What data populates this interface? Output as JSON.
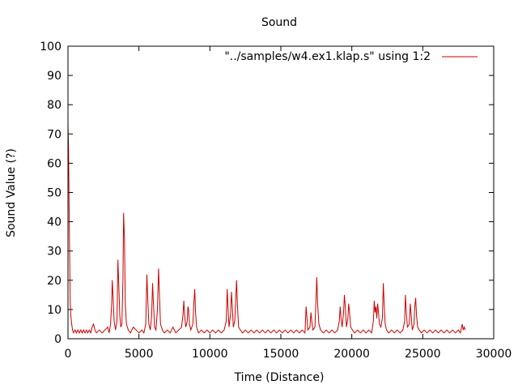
{
  "chart_data": {
    "type": "line",
    "title": "Sound",
    "xlabel": "Time (Distance)",
    "ylabel": "Sound Value (?)",
    "xlim": [
      0,
      30000
    ],
    "ylim": [
      0,
      100
    ],
    "x_ticks": [
      0,
      5000,
      10000,
      15000,
      20000,
      25000,
      30000
    ],
    "y_ticks": [
      0,
      10,
      20,
      30,
      40,
      50,
      60,
      70,
      80,
      90,
      100
    ],
    "x_tick_labels": [
      "0",
      "5000",
      "10000",
      "15000",
      "20000",
      "25000",
      "30000"
    ],
    "y_tick_labels": [
      "0",
      "10",
      "20",
      "30",
      "40",
      "50",
      "60",
      "70",
      "80",
      "90",
      "100"
    ],
    "grid": false,
    "legend_position": "top-right",
    "series": [
      {
        "name": "\"../samples/w4.ex1.klap.s\" using 1:2",
        "color": "#cc0000",
        "points": [
          [
            0,
            73
          ],
          [
            40,
            65
          ],
          [
            80,
            45
          ],
          [
            120,
            28
          ],
          [
            160,
            12
          ],
          [
            200,
            8
          ],
          [
            260,
            5
          ],
          [
            320,
            3
          ],
          [
            400,
            2
          ],
          [
            500,
            3
          ],
          [
            600,
            2
          ],
          [
            700,
            3
          ],
          [
            800,
            2
          ],
          [
            900,
            3
          ],
          [
            1000,
            2
          ],
          [
            1100,
            3
          ],
          [
            1200,
            2
          ],
          [
            1300,
            3
          ],
          [
            1400,
            2
          ],
          [
            1500,
            3
          ],
          [
            1600,
            2
          ],
          [
            1700,
            4
          ],
          [
            1800,
            5
          ],
          [
            1900,
            3
          ],
          [
            2000,
            2
          ],
          [
            2200,
            3
          ],
          [
            2400,
            2
          ],
          [
            2600,
            3
          ],
          [
            2800,
            4
          ],
          [
            2900,
            2
          ],
          [
            3000,
            5
          ],
          [
            3080,
            12
          ],
          [
            3120,
            20
          ],
          [
            3180,
            14
          ],
          [
            3250,
            6
          ],
          [
            3350,
            3
          ],
          [
            3450,
            6
          ],
          [
            3520,
            27
          ],
          [
            3580,
            18
          ],
          [
            3650,
            8
          ],
          [
            3720,
            4
          ],
          [
            3800,
            5
          ],
          [
            3870,
            20
          ],
          [
            3920,
            43
          ],
          [
            3980,
            34
          ],
          [
            4040,
            12
          ],
          [
            4120,
            5
          ],
          [
            4250,
            3
          ],
          [
            4400,
            2
          ],
          [
            4600,
            4
          ],
          [
            4800,
            3
          ],
          [
            5000,
            2
          ],
          [
            5200,
            3
          ],
          [
            5350,
            2
          ],
          [
            5480,
            5
          ],
          [
            5560,
            22
          ],
          [
            5620,
            14
          ],
          [
            5700,
            5
          ],
          [
            5800,
            3
          ],
          [
            5900,
            8
          ],
          [
            5960,
            19
          ],
          [
            6020,
            12
          ],
          [
            6100,
            4
          ],
          [
            6200,
            3
          ],
          [
            6300,
            10
          ],
          [
            6380,
            24
          ],
          [
            6440,
            16
          ],
          [
            6520,
            5
          ],
          [
            6650,
            3
          ],
          [
            6800,
            2
          ],
          [
            7000,
            3
          ],
          [
            7200,
            2
          ],
          [
            7400,
            4
          ],
          [
            7600,
            2
          ],
          [
            7800,
            3
          ],
          [
            8000,
            4
          ],
          [
            8100,
            8
          ],
          [
            8160,
            13
          ],
          [
            8220,
            8
          ],
          [
            8300,
            4
          ],
          [
            8400,
            6
          ],
          [
            8450,
            11
          ],
          [
            8500,
            10
          ],
          [
            8560,
            5
          ],
          [
            8650,
            3
          ],
          [
            8800,
            5
          ],
          [
            8880,
            13
          ],
          [
            8930,
            17
          ],
          [
            8990,
            9
          ],
          [
            9060,
            4
          ],
          [
            9200,
            2
          ],
          [
            9400,
            3
          ],
          [
            9600,
            2
          ],
          [
            9800,
            3
          ],
          [
            10000,
            2
          ],
          [
            10200,
            3
          ],
          [
            10400,
            2
          ],
          [
            10600,
            3
          ],
          [
            10800,
            2
          ],
          [
            11000,
            3
          ],
          [
            11150,
            6
          ],
          [
            11220,
            17
          ],
          [
            11280,
            10
          ],
          [
            11350,
            4
          ],
          [
            11450,
            8
          ],
          [
            11520,
            16
          ],
          [
            11580,
            11
          ],
          [
            11650,
            4
          ],
          [
            11750,
            6
          ],
          [
            11820,
            13
          ],
          [
            11880,
            20
          ],
          [
            11940,
            12
          ],
          [
            12020,
            4
          ],
          [
            12150,
            3
          ],
          [
            12300,
            2
          ],
          [
            12500,
            3
          ],
          [
            12700,
            2
          ],
          [
            12900,
            3
          ],
          [
            13100,
            2
          ],
          [
            13300,
            3
          ],
          [
            13500,
            2
          ],
          [
            13700,
            3
          ],
          [
            13900,
            2
          ],
          [
            14100,
            3
          ],
          [
            14300,
            2
          ],
          [
            14500,
            3
          ],
          [
            14700,
            2
          ],
          [
            14900,
            3
          ],
          [
            15100,
            2
          ],
          [
            15300,
            3
          ],
          [
            15500,
            2
          ],
          [
            15700,
            3
          ],
          [
            15900,
            2
          ],
          [
            16100,
            3
          ],
          [
            16300,
            2
          ],
          [
            16500,
            3
          ],
          [
            16700,
            2
          ],
          [
            16780,
            11
          ],
          [
            16840,
            7
          ],
          [
            16900,
            3
          ],
          [
            17050,
            4
          ],
          [
            17120,
            9
          ],
          [
            17180,
            6
          ],
          [
            17260,
            3
          ],
          [
            17400,
            4
          ],
          [
            17480,
            14
          ],
          [
            17530,
            21
          ],
          [
            17590,
            12
          ],
          [
            17680,
            5
          ],
          [
            17800,
            3
          ],
          [
            18000,
            2
          ],
          [
            18200,
            3
          ],
          [
            18400,
            2
          ],
          [
            18600,
            3
          ],
          [
            18800,
            2
          ],
          [
            19000,
            3
          ],
          [
            19120,
            6
          ],
          [
            19180,
            11
          ],
          [
            19240,
            7
          ],
          [
            19320,
            4
          ],
          [
            19420,
            9
          ],
          [
            19480,
            15
          ],
          [
            19540,
            11
          ],
          [
            19620,
            4
          ],
          [
            19720,
            7
          ],
          [
            19780,
            12
          ],
          [
            19840,
            9
          ],
          [
            19920,
            4
          ],
          [
            20050,
            3
          ],
          [
            20200,
            2
          ],
          [
            20400,
            3
          ],
          [
            20600,
            2
          ],
          [
            20800,
            3
          ],
          [
            21000,
            2
          ],
          [
            21200,
            3
          ],
          [
            21400,
            2
          ],
          [
            21520,
            6
          ],
          [
            21580,
            13
          ],
          [
            21640,
            9
          ],
          [
            21700,
            11
          ],
          [
            21760,
            7
          ],
          [
            21820,
            12
          ],
          [
            21880,
            9
          ],
          [
            21950,
            5
          ],
          [
            22050,
            4
          ],
          [
            22150,
            7
          ],
          [
            22220,
            19
          ],
          [
            22280,
            12
          ],
          [
            22350,
            5
          ],
          [
            22450,
            3
          ],
          [
            22600,
            2
          ],
          [
            22800,
            3
          ],
          [
            23000,
            2
          ],
          [
            23200,
            3
          ],
          [
            23400,
            2
          ],
          [
            23600,
            3
          ],
          [
            23720,
            6
          ],
          [
            23780,
            15
          ],
          [
            23840,
            9
          ],
          [
            23920,
            4
          ],
          [
            24050,
            5
          ],
          [
            24120,
            12
          ],
          [
            24180,
            8
          ],
          [
            24260,
            3
          ],
          [
            24380,
            5
          ],
          [
            24440,
            11
          ],
          [
            24500,
            14
          ],
          [
            24560,
            8
          ],
          [
            24640,
            4
          ],
          [
            24750,
            3
          ],
          [
            24900,
            2
          ],
          [
            25100,
            3
          ],
          [
            25300,
            2
          ],
          [
            25500,
            3
          ],
          [
            25700,
            2
          ],
          [
            25900,
            3
          ],
          [
            26100,
            2
          ],
          [
            26300,
            3
          ],
          [
            26500,
            2
          ],
          [
            26700,
            3
          ],
          [
            26900,
            2
          ],
          [
            27100,
            3
          ],
          [
            27300,
            2
          ],
          [
            27500,
            3
          ],
          [
            27650,
            2
          ],
          [
            27780,
            5
          ],
          [
            27850,
            3
          ],
          [
            27920,
            4
          ],
          [
            28000,
            3
          ]
        ]
      }
    ]
  }
}
